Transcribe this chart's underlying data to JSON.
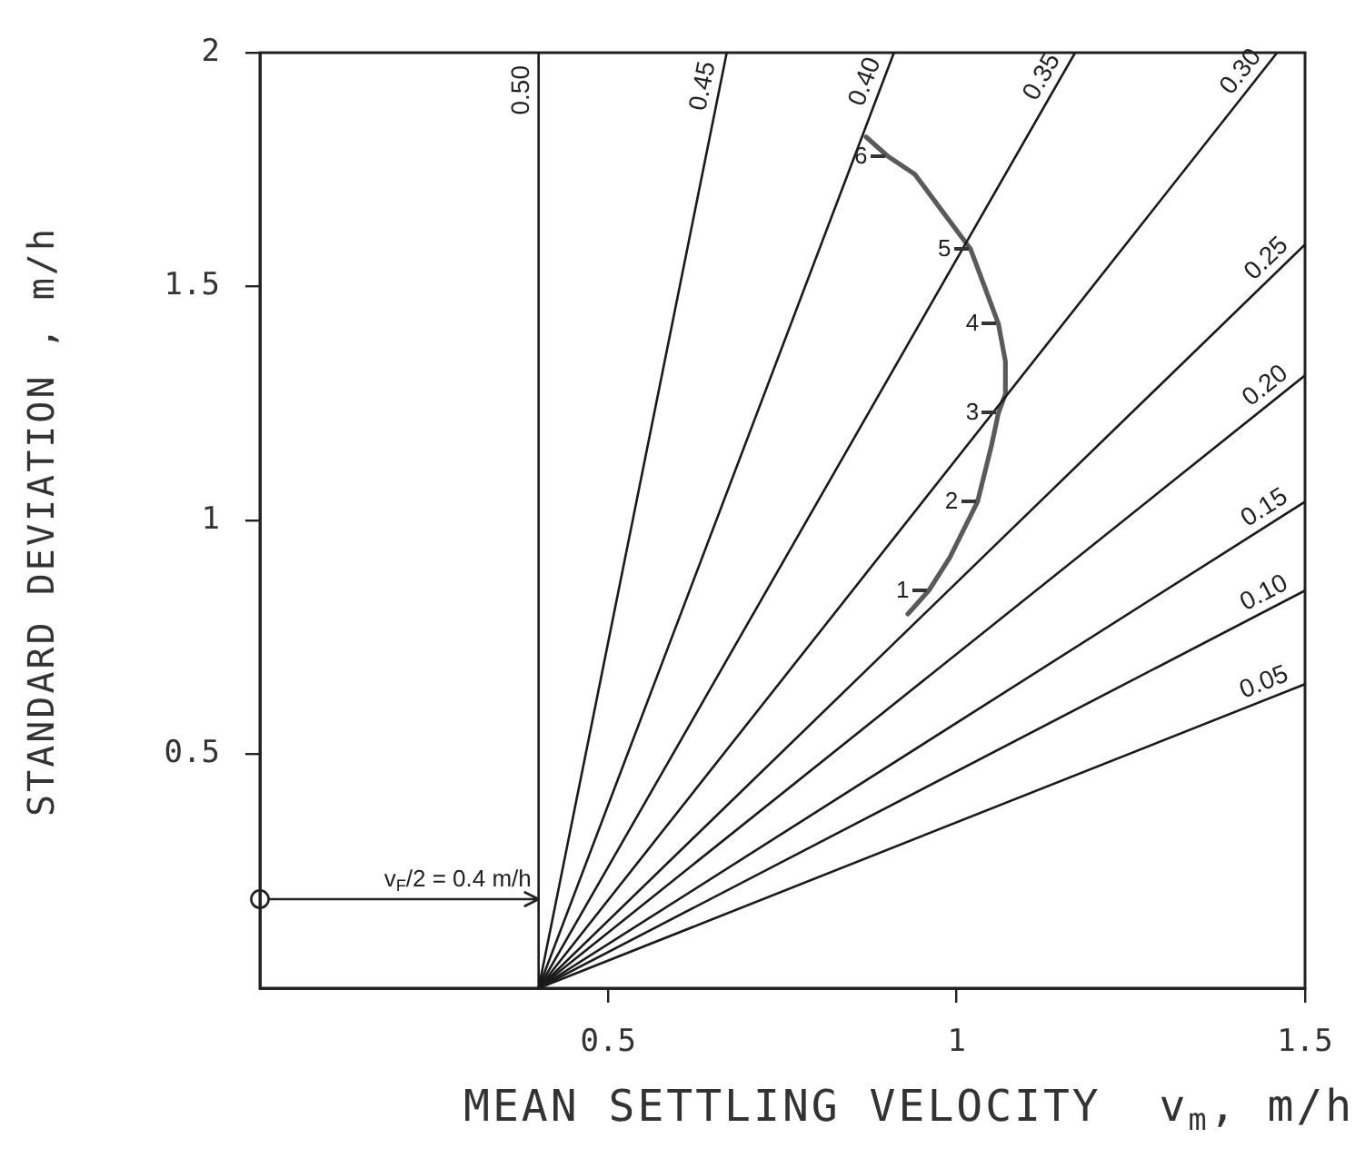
{
  "chart_data": {
    "type": "line",
    "xlabel": "MEAN SETTLING VELOCITY  v$_{m}$, m/h",
    "ylabel": "STANDARD DEVIATION , m/h",
    "xlim": [
      0,
      1.5
    ],
    "ylim": [
      0,
      2
    ],
    "xticks": [
      0.5,
      1,
      1.5
    ],
    "yticks": [
      0.5,
      1,
      1.5,
      2
    ],
    "marker": "none",
    "line_style": "solid",
    "series": [
      {
        "name": "0.05",
        "color": "#1a1a1a",
        "x": [
          0.4,
          1.5
        ],
        "values": [
          0,
          0.65
        ]
      },
      {
        "name": "0.10",
        "color": "#1a1a1a",
        "x": [
          0.4,
          1.5
        ],
        "values": [
          0,
          0.85
        ]
      },
      {
        "name": "0.15",
        "color": "#1a1a1a",
        "x": [
          0.4,
          1.5
        ],
        "values": [
          0,
          1.04
        ]
      },
      {
        "name": "0.20",
        "color": "#1a1a1a",
        "x": [
          0.4,
          1.5
        ],
        "values": [
          0,
          1.31
        ]
      },
      {
        "name": "0.25",
        "color": "#1a1a1a",
        "x": [
          0.4,
          1.5
        ],
        "values": [
          0,
          1.59
        ]
      },
      {
        "name": "0.30",
        "color": "#1a1a1a",
        "x": [
          0.4,
          1.46
        ],
        "values": [
          0,
          2
        ]
      },
      {
        "name": "0.35",
        "color": "#1a1a1a",
        "x": [
          0.4,
          1.17
        ],
        "values": [
          0,
          2
        ]
      },
      {
        "name": "0.40",
        "color": "#1a1a1a",
        "x": [
          0.4,
          0.91
        ],
        "values": [
          0,
          2
        ]
      },
      {
        "name": "0.45",
        "color": "#1a1a1a",
        "x": [
          0.4,
          0.67
        ],
        "values": [
          0,
          2
        ]
      },
      {
        "name": "0.50",
        "color": "#1a1a1a",
        "x": [
          0.4,
          0.4
        ],
        "values": [
          0,
          2
        ]
      },
      {
        "color": "#5a5a5a",
        "x": [
          0.93,
          0.96,
          0.99,
          1.03,
          1.05,
          1.06,
          1.07,
          1.07,
          1.06,
          1.04,
          1.02,
          0.98,
          0.94,
          0.9,
          0.87
        ],
        "values": [
          0.8,
          0.85,
          0.92,
          1.04,
          1.16,
          1.23,
          1.27,
          1.34,
          1.42,
          1.5,
          1.58,
          1.66,
          1.74,
          1.78,
          1.82
        ]
      }
    ],
    "annotations": [
      {
        "text": "v$_{F}$/2 = 0.4 m/h",
        "x": 0.4,
        "y": 0.19
      },
      {
        "text": "1",
        "x": 0.96,
        "y": 0.85
      },
      {
        "text": "2",
        "x": 1.03,
        "y": 1.04
      },
      {
        "text": "3",
        "x": 1.06,
        "y": 1.23
      },
      {
        "text": "4",
        "x": 1.06,
        "y": 1.42
      },
      {
        "text": "5",
        "x": 1.02,
        "y": 1.58
      },
      {
        "text": "6",
        "x": 0.9,
        "y": 1.78
      }
    ]
  }
}
